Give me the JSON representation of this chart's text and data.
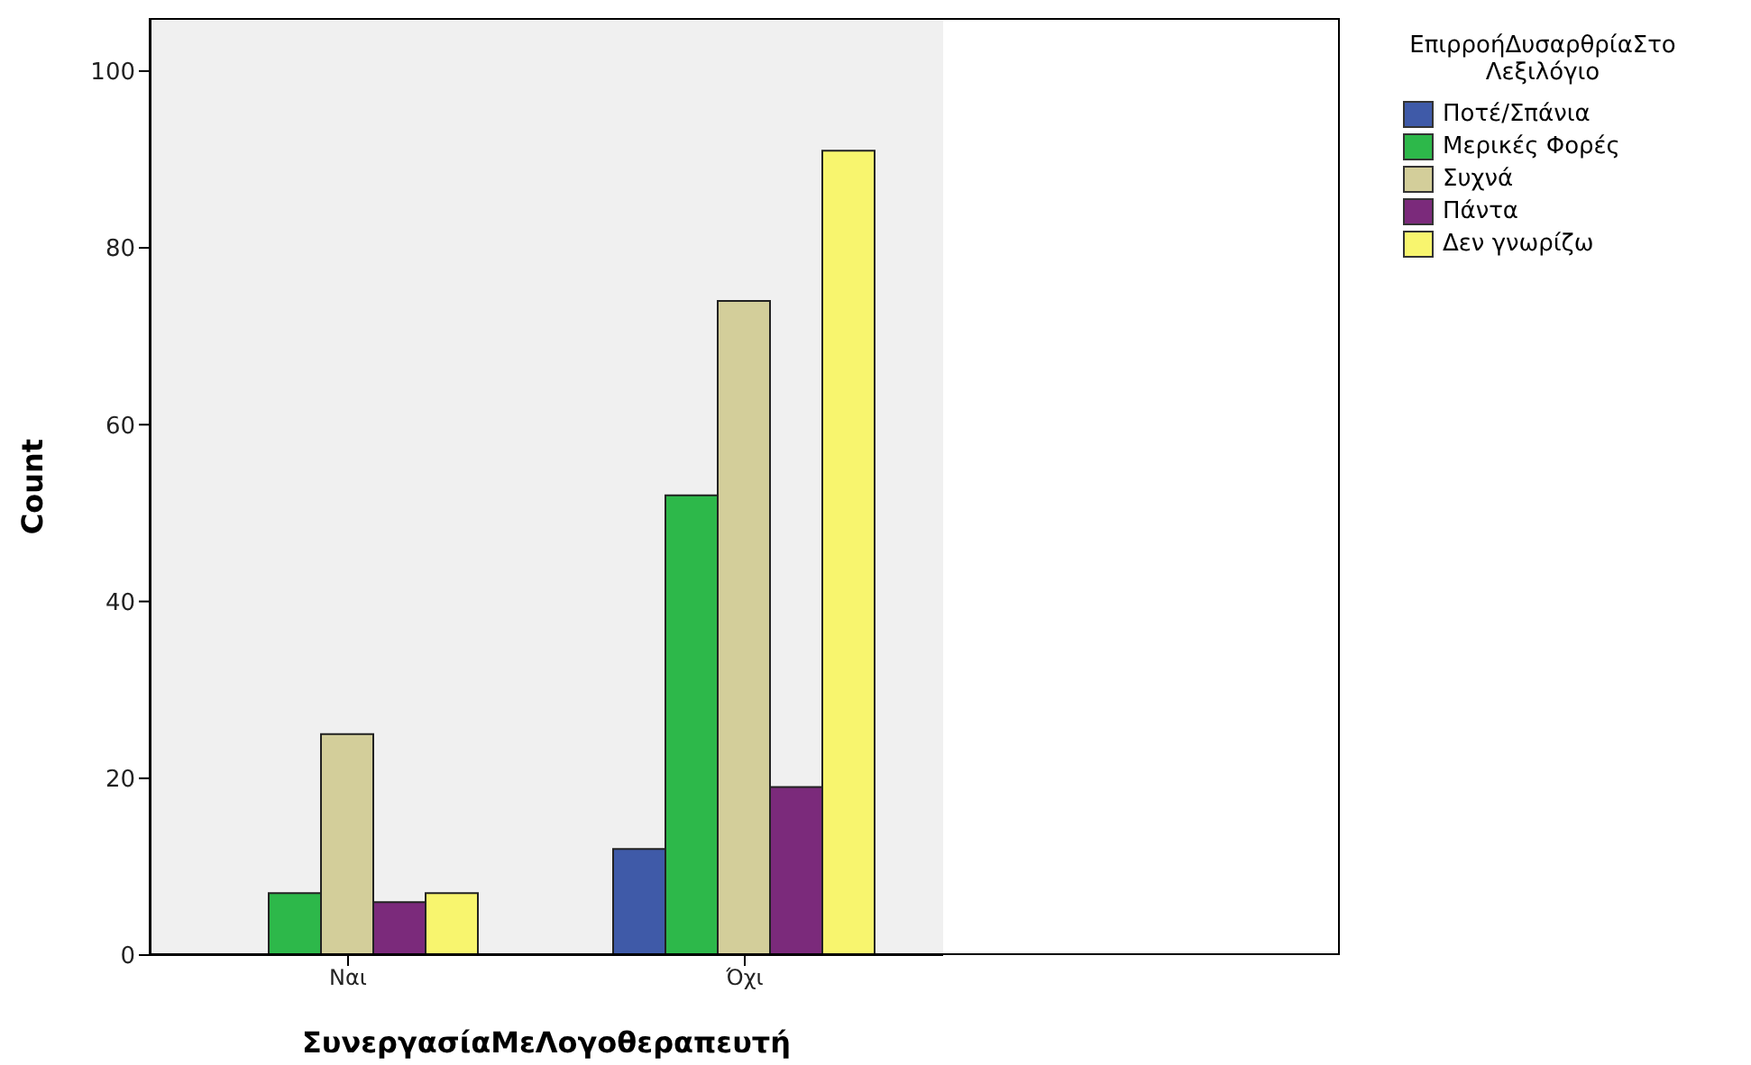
{
  "chart_data": {
    "type": "bar",
    "xlabel": "ΣυνεργασίαΜεΛογοθεραπευτή",
    "ylabel": "Count",
    "legend_title": "ΕπιρροήΔυσαρθρίαΣτο Λεξιλόγιο",
    "categories": [
      "Ναι",
      "Όχι"
    ],
    "series": [
      {
        "name": "Ποτέ/Σπάνια",
        "color": "#3f5aa8",
        "values": [
          null,
          12
        ]
      },
      {
        "name": "Μερικές Φορές",
        "color": "#2db84a",
        "values": [
          7,
          52
        ]
      },
      {
        "name": "Συχνά",
        "color": "#d3ce9a",
        "values": [
          25,
          74
        ]
      },
      {
        "name": "Πάντα",
        "color": "#7b2a7b",
        "values": [
          6,
          19
        ]
      },
      {
        "name": "Δεν γνωρίζω",
        "color": "#f8f56e",
        "values": [
          7,
          91
        ]
      }
    ],
    "ylim": [
      0,
      106
    ],
    "yticks": [
      0,
      20,
      40,
      60,
      80,
      100
    ],
    "grid": false,
    "legend": "top right"
  }
}
